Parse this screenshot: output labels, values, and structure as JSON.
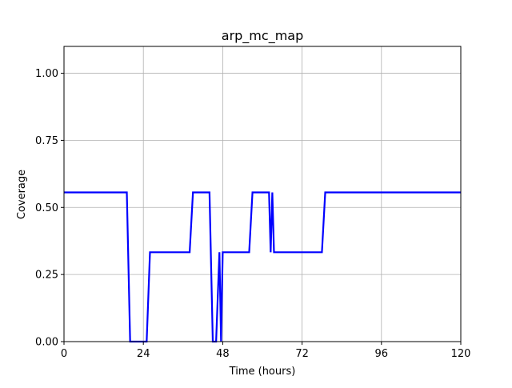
{
  "chart_data": {
    "type": "line",
    "title": "arp_mc_map",
    "xlabel": "Time (hours)",
    "ylabel": "Coverage",
    "xlim": [
      0,
      120
    ],
    "ylim": [
      0,
      1.1
    ],
    "xticks": [
      0,
      24,
      48,
      72,
      96,
      120
    ],
    "xtick_labels": [
      "0",
      "24",
      "48",
      "72",
      "96",
      "120"
    ],
    "yticks": [
      0,
      0.25,
      0.5,
      0.75,
      1.0
    ],
    "ytick_labels": [
      "0.00",
      "0.25",
      "0.50",
      "0.75",
      "1.00"
    ],
    "grid": true,
    "series": [
      {
        "color": "#0000ff",
        "x": [
          0,
          19,
          20,
          25,
          26,
          38,
          39,
          44,
          45,
          46,
          47,
          47.5,
          48,
          56,
          57,
          62,
          62.5,
          63,
          63.5,
          78,
          79,
          120
        ],
        "y": [
          0.556,
          0.556,
          0,
          0,
          0.333,
          0.333,
          0.556,
          0.556,
          0,
          0,
          0.333,
          0,
          0.333,
          0.333,
          0.556,
          0.556,
          0.333,
          0.556,
          0.333,
          0.333,
          0.556,
          0.556
        ]
      }
    ]
  }
}
